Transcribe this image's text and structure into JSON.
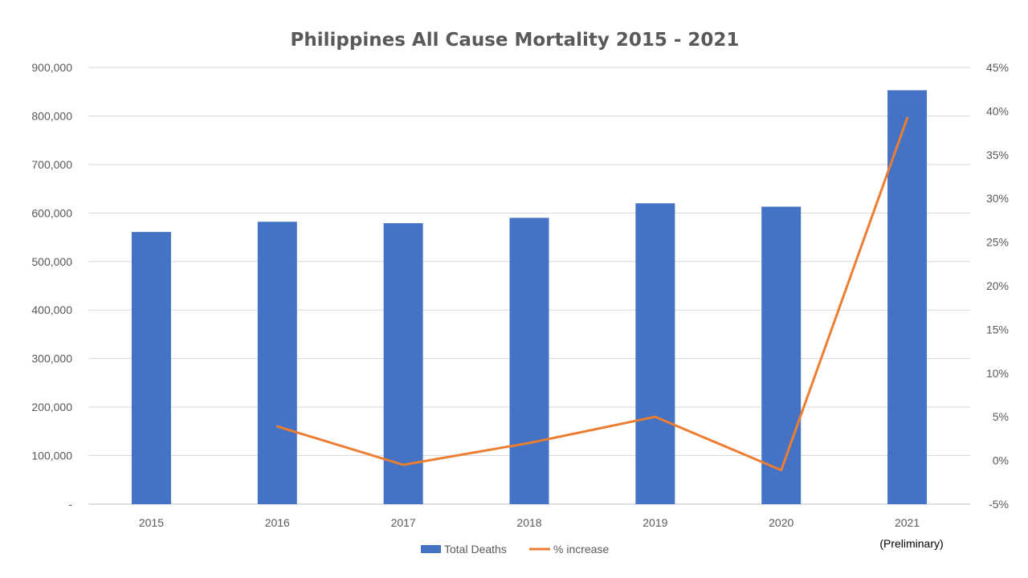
{
  "chart_data": {
    "type": "bar",
    "title": "Philippines All Cause Mortality 2015 - 2021",
    "categories": [
      "2015",
      "2016",
      "2017",
      "2018",
      "2019",
      "2020",
      "2021"
    ],
    "series": [
      {
        "name": "Total Deaths",
        "type": "bar",
        "axis": "left",
        "color": "#4472C4",
        "values": [
          561000,
          582000,
          579000,
          590000,
          620000,
          613000,
          853000
        ]
      },
      {
        "name": "% increase",
        "type": "line",
        "axis": "right",
        "color": "#ED7D31",
        "values": [
          null,
          3.9,
          -0.5,
          2.0,
          5.0,
          -1.1,
          39.2
        ]
      }
    ],
    "y_left": {
      "ylim": [
        0,
        900000
      ],
      "ticks": [
        "-",
        "100,000",
        "200,000",
        "300,000",
        "400,000",
        "500,000",
        "600,000",
        "700,000",
        "800,000",
        "900,000"
      ]
    },
    "y_right": {
      "ylim": [
        -5,
        45
      ],
      "ticks": [
        "-5%",
        "0%",
        "5%",
        "10%",
        "15%",
        "20%",
        "25%",
        "30%",
        "35%",
        "40%",
        "45%"
      ]
    },
    "annotation": "(Preliminary)",
    "grid": true,
    "legend": "bottom"
  }
}
